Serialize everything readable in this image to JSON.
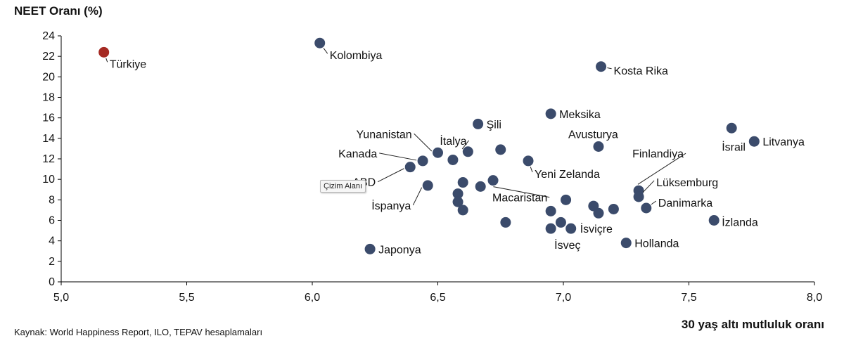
{
  "chart_data": {
    "type": "scatter",
    "ylabel": "NEET Oranı (%)",
    "xlabel": "30 yaş altı mutluluk oranı",
    "xlim": [
      5.0,
      8.0
    ],
    "ylim": [
      0,
      24
    ],
    "x_ticks": [
      "5,0",
      "5,5",
      "6,0",
      "6,5",
      "7,0",
      "7,5",
      "8,0"
    ],
    "y_ticks": [
      "0",
      "2",
      "4",
      "6",
      "8",
      "10",
      "12",
      "14",
      "16",
      "18",
      "20",
      "22",
      "24"
    ],
    "grid": false,
    "colors": {
      "default": "#3b4b6b",
      "highlight": "#a52a23"
    },
    "points": [
      {
        "label": "Türkiye",
        "x": 5.17,
        "y": 22.4,
        "highlight": true
      },
      {
        "label": "Kolombiya",
        "x": 6.03,
        "y": 23.3
      },
      {
        "label": "Kosta Rika",
        "x": 7.15,
        "y": 21.0
      },
      {
        "label": "Meksika",
        "x": 6.95,
        "y": 16.4
      },
      {
        "label": "Şili",
        "x": 6.66,
        "y": 15.4
      },
      {
        "label": "İsrail",
        "x": 7.67,
        "y": 15.0
      },
      {
        "label": "Litvanya",
        "x": 7.76,
        "y": 13.7
      },
      {
        "label": "Avusturya",
        "x": 7.14,
        "y": 13.2
      },
      {
        "label": "İtalya",
        "x": 6.62,
        "y": 12.7
      },
      {
        "label": "Yunanistan",
        "x": 6.5,
        "y": 12.6
      },
      {
        "label": "",
        "x": 6.75,
        "y": 12.9
      },
      {
        "label": "",
        "x": 6.56,
        "y": 11.9
      },
      {
        "label": "Kanada",
        "x": 6.44,
        "y": 11.8
      },
      {
        "label": "Yeni Zelanda",
        "x": 6.86,
        "y": 11.8
      },
      {
        "label": "ABD",
        "x": 6.39,
        "y": 11.2
      },
      {
        "label": "Macaristan",
        "x": 6.72,
        "y": 9.9
      },
      {
        "label": "",
        "x": 6.6,
        "y": 9.7
      },
      {
        "label": "",
        "x": 6.67,
        "y": 9.3
      },
      {
        "label": "İspanya",
        "x": 6.46,
        "y": 9.4
      },
      {
        "label": "Finlandiya",
        "x": 7.3,
        "y": 8.9
      },
      {
        "label": "",
        "x": 6.58,
        "y": 8.6
      },
      {
        "label": "Lüksemburg",
        "x": 7.3,
        "y": 8.3
      },
      {
        "label": "",
        "x": 7.01,
        "y": 8.0
      },
      {
        "label": "",
        "x": 6.58,
        "y": 7.8
      },
      {
        "label": "",
        "x": 7.12,
        "y": 7.4
      },
      {
        "label": "Danimarka",
        "x": 7.33,
        "y": 7.2
      },
      {
        "label": "",
        "x": 7.2,
        "y": 7.1
      },
      {
        "label": "",
        "x": 6.6,
        "y": 7.0
      },
      {
        "label": "",
        "x": 6.95,
        "y": 6.9
      },
      {
        "label": "",
        "x": 7.14,
        "y": 6.7
      },
      {
        "label": "İzlanda",
        "x": 7.6,
        "y": 6.0
      },
      {
        "label": "",
        "x": 6.77,
        "y": 5.8
      },
      {
        "label": "",
        "x": 6.99,
        "y": 5.8
      },
      {
        "label": "İsviçre",
        "x": 7.03,
        "y": 5.2
      },
      {
        "label": "İsveç",
        "x": 6.95,
        "y": 5.2
      },
      {
        "label": "Hollanda",
        "x": 7.25,
        "y": 3.8
      },
      {
        "label": "Japonya",
        "x": 6.23,
        "y": 3.2
      }
    ]
  },
  "source": "Kaynak: World Happiness Report, ILO, TEPAV hesaplamaları",
  "tooltip": "Çizim Alanı"
}
